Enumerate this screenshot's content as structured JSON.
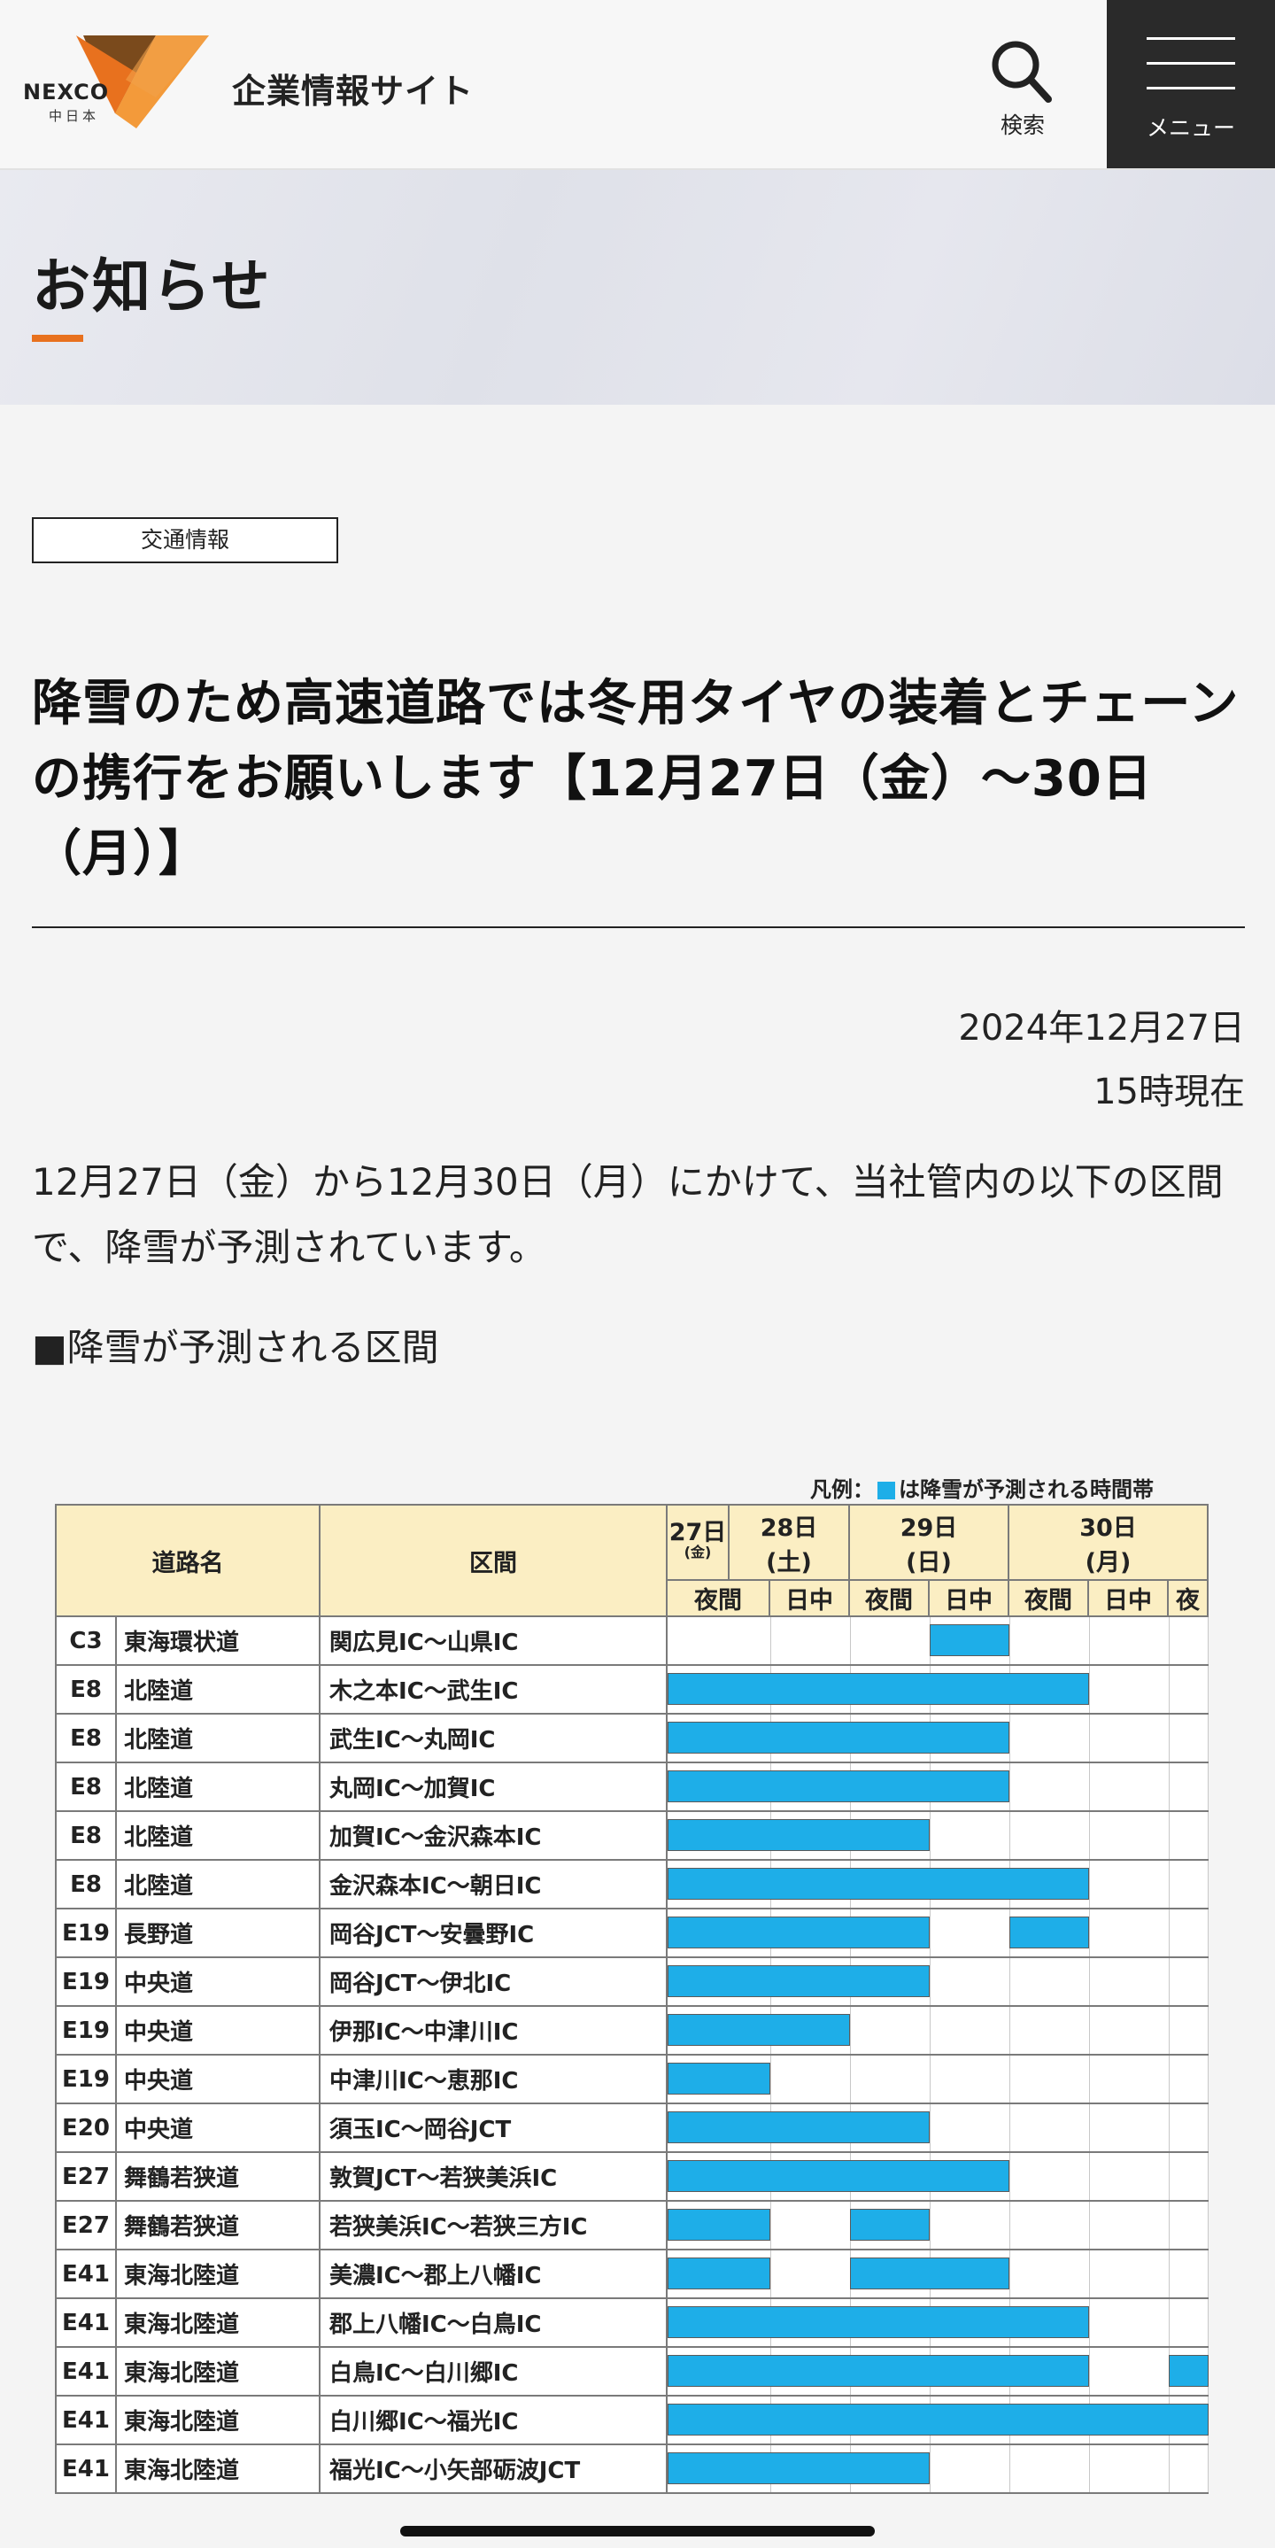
{
  "header": {
    "logo_text": "NEXCO",
    "logo_sub": "中日本",
    "site_title": "企業情報サイト",
    "search_label": "検索",
    "menu_label": "メニュー",
    "accent_color": "#e8711e"
  },
  "page": {
    "heading": "お知らせ"
  },
  "article": {
    "category": "交通情報",
    "title": "降雪のため高速道路では冬用タイヤの装着とチェーンの携行をお願いします【12月27日（金）～30日（月）】",
    "date": "2024年12月27日",
    "time": "15時現在",
    "body": "12月27日（金）から12月30日（月）にかけて、当社管内の以下の区間で、降雪が予測されています。",
    "section_heading": "■降雪が予測される区間"
  },
  "schedule": {
    "legend_prefix": "凡例：",
    "legend_text": "は降雪が予測される時間帯",
    "snow_color": "#1eaee8",
    "header": {
      "road_name": "道路名",
      "section": "区間",
      "days": [
        {
          "label": "27日",
          "sub": "(金)"
        },
        {
          "label": "28日",
          "sub": "(土)"
        },
        {
          "label": "29日",
          "sub": "(日)"
        },
        {
          "label": "30日",
          "sub": "(月)"
        }
      ],
      "slots": [
        "夜間",
        "日中",
        "夜間",
        "日中",
        "夜間",
        "日中",
        "夜"
      ]
    },
    "rows": [
      {
        "code": "C3",
        "road": "東海環状道",
        "section": "関広見IC～山県IC",
        "snow": [
          [
            3,
            4
          ]
        ]
      },
      {
        "code": "E8",
        "road": "北陸道",
        "section": "木之本IC～武生IC",
        "snow": [
          [
            0,
            5
          ]
        ]
      },
      {
        "code": "E8",
        "road": "北陸道",
        "section": "武生IC～丸岡IC",
        "snow": [
          [
            0,
            4
          ]
        ]
      },
      {
        "code": "E8",
        "road": "北陸道",
        "section": "丸岡IC～加賀IC",
        "snow": [
          [
            0,
            4
          ]
        ]
      },
      {
        "code": "E8",
        "road": "北陸道",
        "section": "加賀IC～金沢森本IC",
        "snow": [
          [
            0,
            3
          ]
        ]
      },
      {
        "code": "E8",
        "road": "北陸道",
        "section": "金沢森本IC～朝日IC",
        "snow": [
          [
            0,
            5
          ]
        ]
      },
      {
        "code": "E19",
        "road": "長野道",
        "section": "岡谷JCT～安曇野IC",
        "snow": [
          [
            0,
            3
          ],
          [
            4,
            5
          ]
        ]
      },
      {
        "code": "E19",
        "road": "中央道",
        "section": "岡谷JCT～伊北IC",
        "snow": [
          [
            0,
            3
          ]
        ]
      },
      {
        "code": "E19",
        "road": "中央道",
        "section": "伊那IC～中津川IC",
        "snow": [
          [
            0,
            2
          ]
        ]
      },
      {
        "code": "E19",
        "road": "中央道",
        "section": "中津川IC～恵那IC",
        "snow": [
          [
            0,
            1
          ]
        ]
      },
      {
        "code": "E20",
        "road": "中央道",
        "section": "須玉IC～岡谷JCT",
        "snow": [
          [
            0,
            3
          ]
        ]
      },
      {
        "code": "E27",
        "road": "舞鶴若狭道",
        "section": "敦賀JCT～若狭美浜IC",
        "snow": [
          [
            0,
            4
          ]
        ]
      },
      {
        "code": "E27",
        "road": "舞鶴若狭道",
        "section": "若狭美浜IC～若狭三方IC",
        "snow": [
          [
            0,
            1
          ],
          [
            2,
            3
          ]
        ]
      },
      {
        "code": "E41",
        "road": "東海北陸道",
        "section": "美濃IC～郡上八幡IC",
        "snow": [
          [
            0,
            1
          ],
          [
            2,
            4
          ]
        ]
      },
      {
        "code": "E41",
        "road": "東海北陸道",
        "section": "郡上八幡IC～白鳥IC",
        "snow": [
          [
            0,
            5
          ]
        ]
      },
      {
        "code": "E41",
        "road": "東海北陸道",
        "section": "白鳥IC～白川郷IC",
        "snow": [
          [
            0,
            5
          ],
          [
            6,
            7
          ]
        ]
      },
      {
        "code": "E41",
        "road": "東海北陸道",
        "section": "白川郷IC～福光IC",
        "snow": [
          [
            0,
            7
          ]
        ]
      },
      {
        "code": "E41",
        "road": "東海北陸道",
        "section": "福光IC～小矢部砺波JCT",
        "snow": [
          [
            0,
            3
          ]
        ]
      }
    ]
  }
}
